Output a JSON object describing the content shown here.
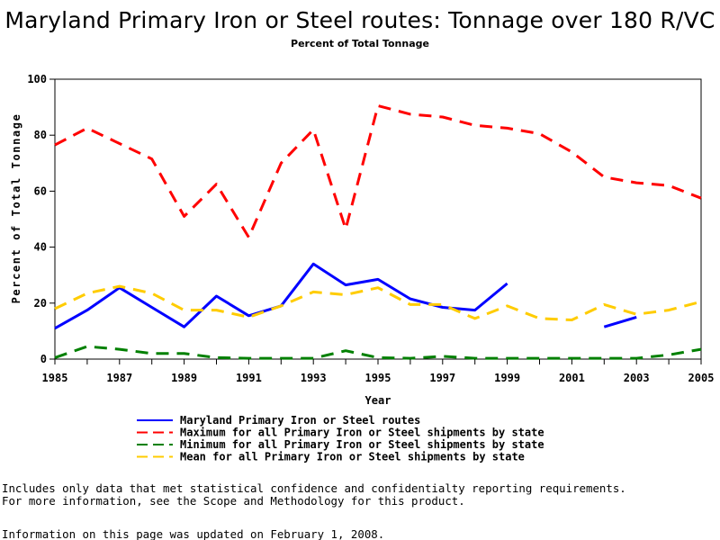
{
  "chart_data": {
    "type": "line",
    "title": "Maryland Primary Iron or Steel routes: Tonnage over 180 R/VC",
    "subtitle": "Percent of Total Tonnage",
    "xlabel": "Year",
    "ylabel": "Percent of Total Tonnage",
    "xlim": [
      1985,
      2005
    ],
    "ylim": [
      0,
      100
    ],
    "x_ticks": [
      "1985",
      "1987",
      "1989",
      "1991",
      "1993",
      "1995",
      "1997",
      "1999",
      "2001",
      "2003",
      "2005"
    ],
    "y_ticks": [
      "0",
      "20",
      "40",
      "60",
      "80",
      "100"
    ],
    "grid": false,
    "legend_position": "bottom",
    "x": [
      1985,
      1986,
      1987,
      1988,
      1989,
      1990,
      1991,
      1992,
      1993,
      1994,
      1995,
      1996,
      1997,
      1998,
      1999,
      2000,
      2001,
      2002,
      2003,
      2004,
      2005
    ],
    "series": [
      {
        "name": "Maryland Primary Iron or Steel routes",
        "color": "#0000ff",
        "style": "solid",
        "values": [
          11,
          17.5,
          25.5,
          18.5,
          11.5,
          22.5,
          15.5,
          19,
          34,
          26.5,
          28.5,
          21.5,
          18.5,
          17.5,
          27,
          null,
          null,
          11.5,
          15,
          null,
          null
        ]
      },
      {
        "name": "Maximum for all Primary Iron or Steel shipments by state",
        "color": "#ff0000",
        "style": "dashed",
        "values": [
          76.5,
          82.5,
          77,
          71.5,
          51,
          62.5,
          43.5,
          70,
          82,
          46.5,
          90.5,
          87.5,
          86.5,
          83.5,
          82.5,
          80.5,
          74,
          65,
          63,
          62,
          57.5
        ]
      },
      {
        "name": "Minimum for all Primary Iron or Steel shipments by state",
        "color": "#008000",
        "style": "dashed",
        "values": [
          0.5,
          4.5,
          3.5,
          2,
          2,
          0.5,
          0.3,
          0.3,
          0.3,
          3,
          0.5,
          0.3,
          1,
          0.3,
          0.3,
          0.3,
          0.3,
          0.3,
          0.3,
          1.5,
          3.5
        ]
      },
      {
        "name": "Mean for all Primary Iron or Steel shipments by state",
        "color": "#ffcc00",
        "style": "dashed",
        "values": [
          18,
          23.5,
          26,
          23.5,
          17.5,
          17.5,
          15,
          19,
          24,
          23,
          25.5,
          19.5,
          19.5,
          14.5,
          19,
          14.5,
          14,
          19.5,
          16,
          17.5,
          20.5
        ]
      }
    ]
  },
  "notes": {
    "line1": "Includes only data that met statistical confidence and confidentialty reporting requirements.",
    "line2": "For more information, see the Scope and Methodology for this product.",
    "updated": "Information on this page was updated on February 1, 2008."
  }
}
